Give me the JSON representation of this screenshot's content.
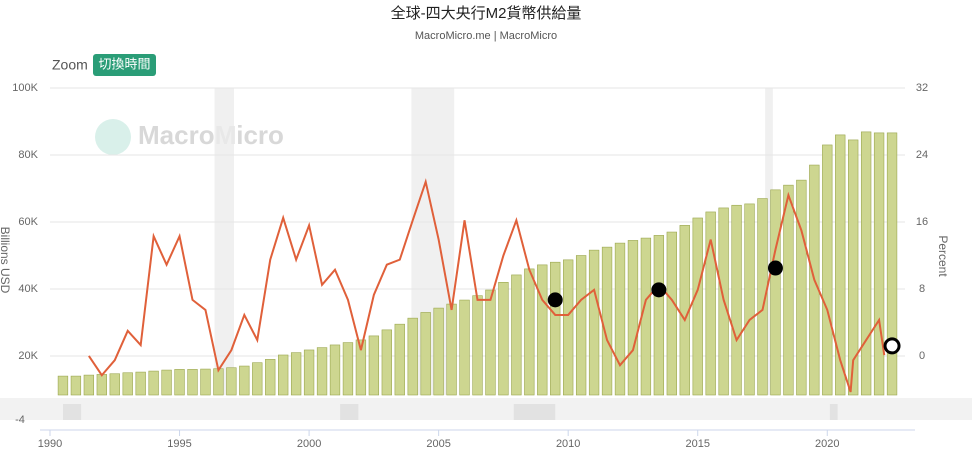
{
  "chart_data": {
    "type": "combo",
    "title": "全球-四大央行M2貨幣供給量",
    "subtitle": "MacroMicro.me | MacroMicro",
    "zoom_label": "Zoom",
    "zoom_button": "切換時間",
    "watermark": "MacroMicro",
    "y_label": "Billions USD",
    "y2_label": "Percent",
    "navigator_label": "-4",
    "xlim": [
      1990,
      2023
    ],
    "xticks": [
      1990,
      1995,
      2000,
      2005,
      2010,
      2015,
      2020
    ],
    "ylim": [
      8358,
      100000
    ],
    "yticks": [
      {
        "value": 20000,
        "label": "20K"
      },
      {
        "value": 40000,
        "label": "40K"
      },
      {
        "value": 60000,
        "label": "60K"
      },
      {
        "value": 80000,
        "label": "80K"
      },
      {
        "value": 100000,
        "label": "100K"
      }
    ],
    "y2lim": [
      -4.66,
      32
    ],
    "y2ticks": [
      0,
      8,
      16,
      24,
      32
    ],
    "grid": true,
    "shaded_periods": [
      [
        1996.35,
        1997.1
      ],
      [
        2003.95,
        2005.6
      ],
      [
        2017.6,
        2017.9
      ]
    ],
    "navigator_bands": [
      [
        1990.5,
        1991.2
      ],
      [
        2001.2,
        2001.9
      ],
      [
        2007.9,
        2009.5
      ],
      [
        2020.1,
        2020.4
      ]
    ],
    "series": [
      {
        "type": "bar",
        "color": "#cdd690",
        "edge": "#9aa64e",
        "x": [
          1990.5,
          1991,
          1991.5,
          1992,
          1992.5,
          1993,
          1993.5,
          1994,
          1994.5,
          1995,
          1995.5,
          1996,
          1996.5,
          1997,
          1997.5,
          1998,
          1998.5,
          1999,
          1999.5,
          2000,
          2000.5,
          2001,
          2001.5,
          2002,
          2002.5,
          2003,
          2003.5,
          2004,
          2004.5,
          2005,
          2005.5,
          2006,
          2006.5,
          2007,
          2007.5,
          2008,
          2008.5,
          2009,
          2009.5,
          2010,
          2010.5,
          2011,
          2011.5,
          2012,
          2012.5,
          2013,
          2013.5,
          2014,
          2014.5,
          2015,
          2015.5,
          2016,
          2016.5,
          2017,
          2017.5,
          2018,
          2018.5,
          2019,
          2019.5,
          2020,
          2020.5,
          2021,
          2021.5,
          2022,
          2022.5
        ],
        "values": [
          14000,
          14000,
          14300,
          14500,
          14700,
          15000,
          15200,
          15500,
          15800,
          16000,
          16000,
          16100,
          16200,
          16500,
          17000,
          18000,
          19000,
          20300,
          21000,
          21800,
          22500,
          23300,
          24000,
          24800,
          26000,
          27800,
          29500,
          31300,
          33000,
          34300,
          35500,
          36700,
          38000,
          39700,
          42000,
          44200,
          46000,
          47200,
          48000,
          48700,
          50000,
          51600,
          52500,
          53700,
          54500,
          55200,
          56000,
          57000,
          59000,
          61200,
          63000,
          64200,
          65000,
          65400,
          67000,
          69600,
          71000,
          72500,
          77000,
          83000,
          86000,
          84500,
          86900,
          86600,
          86600
        ]
      },
      {
        "type": "line",
        "color": "#e0603a",
        "axis": "y2",
        "x": [
          1991.5,
          1992,
          1992.5,
          1993,
          1993.5,
          1994,
          1994.5,
          1995,
          1995.5,
          1996,
          1996.5,
          1997,
          1997.5,
          1998,
          1998.5,
          1999,
          1999.5,
          2000,
          2000.5,
          2001,
          2001.5,
          2002,
          2002.5,
          2003,
          2003.5,
          2004,
          2004.5,
          2005,
          2005.5,
          2006,
          2006.5,
          2007,
          2007.5,
          2008,
          2008.5,
          2009,
          2009.5,
          2010,
          2010.5,
          2011,
          2011.5,
          2012,
          2012.5,
          2013,
          2013.5,
          2014,
          2014.5,
          2015,
          2015.5,
          2016,
          2016.5,
          2017,
          2017.5,
          2018,
          2018.5,
          2019,
          2019.5,
          2020,
          2020.5,
          2020.9,
          2021,
          2021.5,
          2022,
          2022.2
        ],
        "values": [
          0,
          -2.3,
          -0.5,
          3,
          1.3,
          14.3,
          10.9,
          14.3,
          6.7,
          5.5,
          -1.7,
          0.7,
          4.9,
          1.9,
          11.5,
          16.5,
          11.5,
          15.6,
          8.5,
          10.3,
          6.7,
          0.7,
          7.3,
          10.9,
          11.5,
          16.2,
          20.8,
          13.9,
          5.5,
          16.2,
          6.7,
          6.7,
          12,
          16.2,
          10.3,
          6.7,
          4.9,
          4.9,
          6.7,
          7.9,
          1.9,
          -1.1,
          0.7,
          6.7,
          8.5,
          6.7,
          4.3,
          7.9,
          13.9,
          6.7,
          1.9,
          4.3,
          5.5,
          12.7,
          19.2,
          15,
          9.1,
          5.5,
          -0.5,
          -4.3,
          -0.5,
          1.9,
          4.3,
          0.1
        ]
      }
    ],
    "markers": [
      {
        "x": 2009.5,
        "value": 6.7,
        "hollow": false
      },
      {
        "x": 2013.5,
        "value": 7.9,
        "hollow": false
      },
      {
        "x": 2018,
        "value": 10.5,
        "hollow": false
      },
      {
        "x": 2022.5,
        "value": 1.2,
        "hollow": true
      }
    ]
  }
}
